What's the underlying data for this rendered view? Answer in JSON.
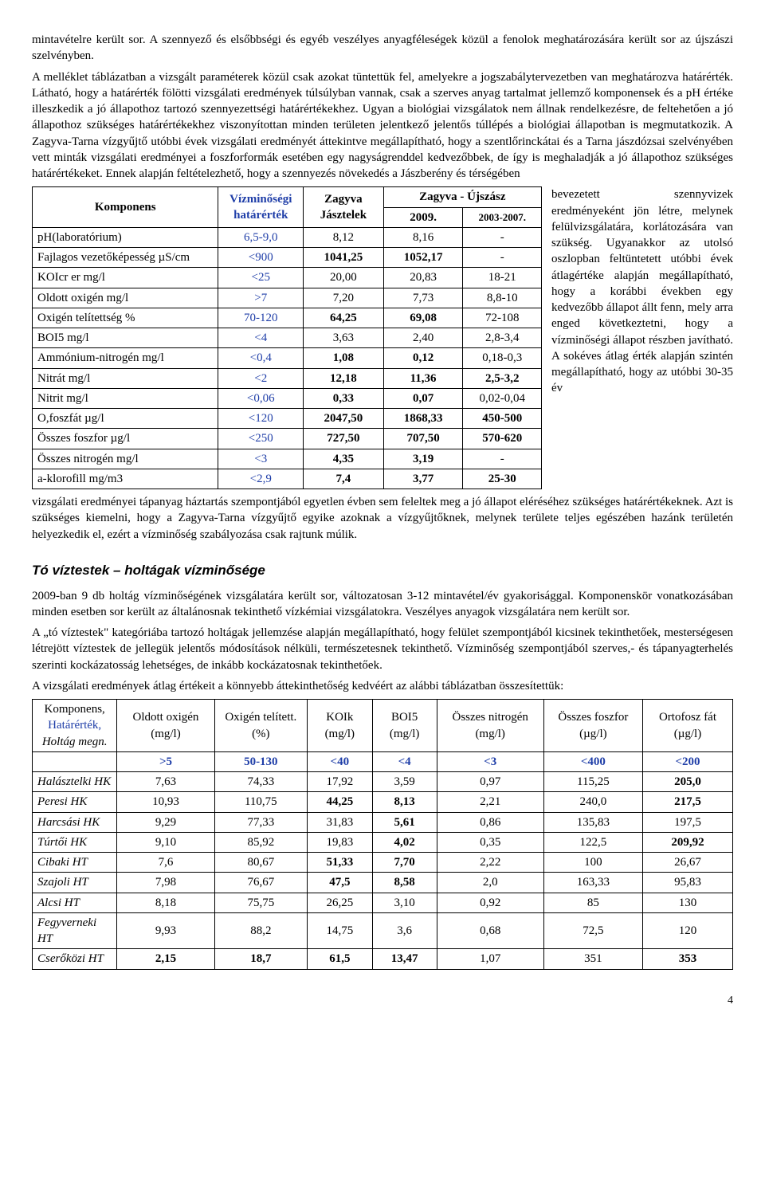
{
  "para1": "mintavételre került sor. A szennyező és elsőbbségi és egyéb veszélyes anyagféleségek közül a fenolok meghatározására került sor az újszászi szelvényben.",
  "para2": "A melléklet táblázatban a vizsgált paraméterek közül csak azokat tüntettük fel, amelyekre a jogszabálytervezetben van meghatározva határérték. Látható, hogy a határérték fölötti vizsgálati eredmények túlsúlyban vannak, csak a szerves anyag tartalmat jellemző komponensek és a pH értéke illeszkedik a jó állapothoz tartozó szennyezettségi határértékekhez. Ugyan a biológiai vizsgálatok nem állnak rendelkezésre, de feltehetően a jó állapothoz szükséges határértékekhez viszonyítottan minden területen jelentkező jelentős túllépés a biológiai állapotban is megmutatkozik. A Zagyva-Tarna vízgyűjtő utóbbi évek vizsgálati eredményét áttekintve megállapítható, hogy a szentlőrinckátai és a Tarna jászdózsai szelvényében vett minták vizsgálati eredményei a foszforformák esetében egy nagyságrenddel kedvezőbbek, de így is meghaladják a jó állapothoz szükséges határértékeket. Ennek alapján feltételezhető, hogy a szennyezés növekedés a Jászberény és térségében",
  "wrapText": "bevezetett szennyvizek eredményeként jön létre, melynek felülvizsgálatára, korlátozására van szükség. Ugyanakkor az utolsó oszlopban feltüntetett utóbbi évek átlagértéke alapján megállapítható, hogy a korábbi években egy kedvezőbb állapot állt fenn, mely arra enged következtetni, hogy a vízminőségi állapot részben javítható. A sokéves átlag érték alapján szintén megállapítható, hogy az utóbbi 30-35 év",
  "para3": "vizsgálati eredményei tápanyag háztartás szempontjából egyetlen évben sem feleltek meg a jó állapot eléréséhez szükséges határértékeknek. Azt is szükséges kiemelni, hogy a Zagyva-Tarna vízgyűjtő egyike azoknak a vízgyűjtőknek, melynek területe teljes egészében hazánk területén helyezkedik el, ezért a vízminőség szabályozása csak rajtunk múlik.",
  "sectionTitle": "Tó víztestek – holtágak vízminősége",
  "para4": "2009-ban 9 db holtág vízminőségének vizsgálatára került sor, változatosan 3-12 mintavétel/év gyakorisággal. Komponenskör vonatkozásában minden esetben sor került az általánosnak tekinthető vízkémiai vizsgálatokra. Veszélyes anyagok vizsgálatára nem került sor.",
  "para5": "A „tó víztestek\" kategóriába tartozó holtágak jellemzése alapján megállapítható, hogy felület szempontjából kicsinek tekinthetőek, mesterségesen létrejött víztestek de jellegük jelentős módosítások nélküli, természetesnek tekinthető. Vízminőség szempontjából szerves,- és tápanyagterhelés szerinti kockázatosság lehetséges, de inkább kockázatosnak tekinthetőek.",
  "para6": "A vizsgálati eredmények átlag értékeit a könnyebb áttekinthetőség kedvéért az alábbi táblázatban összesítettük:",
  "pageNumber": "4",
  "t1": {
    "h_komp": "Komponens",
    "h_lim1": "Vízminőségi",
    "h_lim2": "határérték",
    "h_z1": "Zagyva",
    "h_z2": "Jásztelek",
    "h_u0": "Zagyva - Újszász",
    "h_u1": "2009.",
    "h_u2": "2003-2007.",
    "rows": [
      {
        "name": "pH(laboratórium)",
        "lim": "6,5-9,0",
        "v1": "8,12",
        "v2": "8,16",
        "v3": "-",
        "b": [
          0,
          0,
          0,
          0
        ]
      },
      {
        "name": "Fajlagos vezetőképesség µS/cm",
        "lim": "<900",
        "v1": "1041,25",
        "v2": "1052,17",
        "v3": "-",
        "b": [
          0,
          1,
          1,
          0
        ]
      },
      {
        "name": "KOIcr er mg/l",
        "lim": "<25",
        "v1": "20,00",
        "v2": "20,83",
        "v3": "18-21",
        "b": [
          0,
          0,
          0,
          0
        ]
      },
      {
        "name": "Oldott oxigén mg/l",
        "lim": ">7",
        "v1": "7,20",
        "v2": "7,73",
        "v3": "8,8-10",
        "b": [
          0,
          0,
          0,
          0
        ]
      },
      {
        "name": "Oxigén telítettség %",
        "lim": "70-120",
        "v1": "64,25",
        "v2": "69,08",
        "v3": "72-108",
        "b": [
          0,
          1,
          1,
          0
        ]
      },
      {
        "name": "BOI5 mg/l",
        "lim": "<4",
        "v1": "3,63",
        "v2": "2,40",
        "v3": "2,8-3,4",
        "b": [
          0,
          0,
          0,
          0
        ]
      },
      {
        "name": "Ammónium-nitrogén mg/l",
        "lim": "<0,4",
        "v1": "1,08",
        "v2": "0,12",
        "v3": "0,18-0,3",
        "b": [
          0,
          1,
          1,
          0
        ]
      },
      {
        "name": "Nitrát mg/l",
        "lim": "<2",
        "v1": "12,18",
        "v2": "11,36",
        "v3": "2,5-3,2",
        "b": [
          0,
          1,
          1,
          1
        ]
      },
      {
        "name": "Nitrit mg/l",
        "lim": "<0,06",
        "v1": "0,33",
        "v2": "0,07",
        "v3": "0,02-0,04",
        "b": [
          0,
          1,
          1,
          0
        ]
      },
      {
        "name": "O,foszfát µg/l",
        "lim": "<120",
        "v1": "2047,50",
        "v2": "1868,33",
        "v3": "450-500",
        "b": [
          0,
          1,
          1,
          1
        ]
      },
      {
        "name": "Összes foszfor µg/l",
        "lim": "<250",
        "v1": "727,50",
        "v2": "707,50",
        "v3": "570-620",
        "b": [
          0,
          1,
          1,
          1
        ]
      },
      {
        "name": "Összes nitrogén mg/l",
        "lim": "<3",
        "v1": "4,35",
        "v2": "3,19",
        "v3": "-",
        "b": [
          0,
          1,
          1,
          0
        ]
      },
      {
        "name": "a-klorofill mg/m3",
        "lim": "<2,9",
        "v1": "7,4",
        "v2": "3,77",
        "v3": "25-30",
        "b": [
          0,
          1,
          1,
          1
        ]
      }
    ]
  },
  "hk": {
    "head1": {
      "a": "Komponens,",
      "b": "Határérték,",
      "c": "Holtág megn."
    },
    "cols": [
      "Oldott oxigén (mg/l)",
      "Oxigén telített. (%)",
      "KOIk (mg/l)",
      "BOI5 (mg/l)",
      "Összes nitrogén (mg/l)",
      "Összes foszfor (µg/l)",
      "Ortofosz fát (µg/l)"
    ],
    "limits": [
      ">5",
      "50-130",
      "<40",
      "<4",
      "<3",
      "<400",
      "<200"
    ],
    "rows": [
      {
        "name": "Halásztelki HK",
        "v": [
          "7,63",
          "74,33",
          "17,92",
          "3,59",
          "0,97",
          "115,25",
          "205,0"
        ],
        "b": [
          0,
          0,
          0,
          0,
          0,
          0,
          1
        ]
      },
      {
        "name": "Peresi HK",
        "v": [
          "10,93",
          "110,75",
          "44,25",
          "8,13",
          "2,21",
          "240,0",
          "217,5"
        ],
        "b": [
          0,
          0,
          1,
          1,
          0,
          0,
          1
        ]
      },
      {
        "name": "Harcsási HK",
        "v": [
          "9,29",
          "77,33",
          "31,83",
          "5,61",
          "0,86",
          "135,83",
          "197,5"
        ],
        "b": [
          0,
          0,
          0,
          1,
          0,
          0,
          0
        ]
      },
      {
        "name": "Túrtői HK",
        "v": [
          "9,10",
          "85,92",
          "19,83",
          "4,02",
          "0,35",
          "122,5",
          "209,92"
        ],
        "b": [
          0,
          0,
          0,
          1,
          0,
          0,
          1
        ]
      },
      {
        "name": "Cibaki  HT",
        "v": [
          "7,6",
          "80,67",
          "51,33",
          "7,70",
          "2,22",
          "100",
          "26,67"
        ],
        "b": [
          0,
          0,
          1,
          1,
          0,
          0,
          0
        ]
      },
      {
        "name": "Szajoli HT",
        "v": [
          "7,98",
          "76,67",
          "47,5",
          "8,58",
          "2,0",
          "163,33",
          "95,83"
        ],
        "b": [
          0,
          0,
          1,
          1,
          0,
          0,
          0
        ]
      },
      {
        "name": "Alcsi HT",
        "v": [
          "8,18",
          "75,75",
          "26,25",
          "3,10",
          "0,92",
          "85",
          "130"
        ],
        "b": [
          0,
          0,
          0,
          0,
          0,
          0,
          0
        ]
      },
      {
        "name": "Fegyverneki HT",
        "v": [
          "9,93",
          "88,2",
          "14,75",
          "3,6",
          "0,68",
          "72,5",
          "120"
        ],
        "b": [
          0,
          0,
          0,
          0,
          0,
          0,
          0
        ]
      },
      {
        "name": "Cserőközi HT",
        "v": [
          "2,15",
          "18,7",
          "61,5",
          "13,47",
          "1,07",
          "351",
          "353"
        ],
        "b": [
          1,
          1,
          1,
          1,
          0,
          0,
          1
        ]
      }
    ]
  }
}
